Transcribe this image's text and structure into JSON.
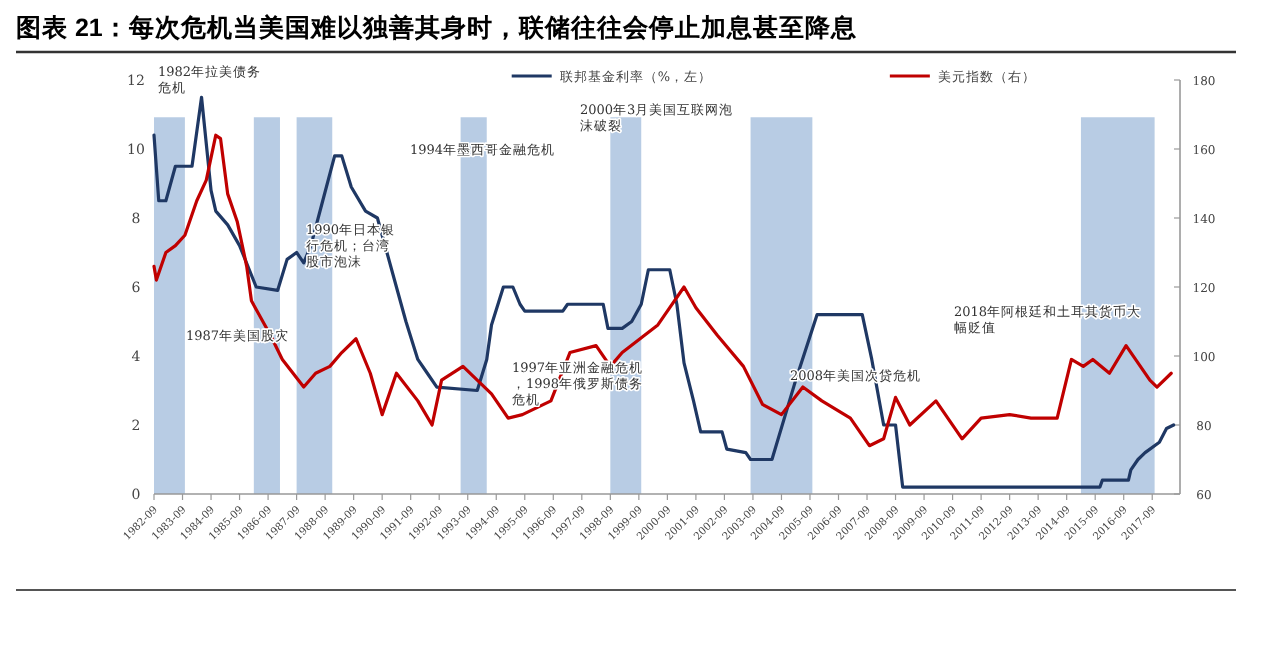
{
  "chart_data": {
    "type": "line",
    "title": "图表 21：每次危机当美国难以独善其身时，联储往往会停止加息甚至降息",
    "legend": "top",
    "xlim": [
      "1982-09",
      "2018-07"
    ],
    "xticks": [
      "1982-09",
      "1983-09",
      "1984-09",
      "1985-09",
      "1986-09",
      "1987-09",
      "1988-09",
      "1989-09",
      "1990-09",
      "1991-09",
      "1992-09",
      "1993-09",
      "1994-09",
      "1995-09",
      "1996-09",
      "1997-09",
      "1998-09",
      "1999-09",
      "2000-09",
      "2001-09",
      "2002-09",
      "2003-09",
      "2004-09",
      "2005-09",
      "2006-09",
      "2007-09",
      "2008-09",
      "2009-09",
      "2010-09",
      "2011-09",
      "2012-09",
      "2013-09",
      "2014-09",
      "2015-09",
      "2016-09",
      "2017-09"
    ],
    "ylim": [
      0,
      12
    ],
    "yticks": [
      0,
      2,
      4,
      6,
      8,
      10,
      12
    ],
    "y2lim": [
      60,
      180
    ],
    "y2ticks": [
      60,
      80,
      100,
      120,
      140,
      160,
      180
    ],
    "bands": [
      {
        "axis": "x",
        "from": "1982-09",
        "to": "1983-10",
        "color": "#b8cce4"
      },
      {
        "axis": "x",
        "from": "1986-03",
        "to": "1987-02",
        "color": "#b8cce4"
      },
      {
        "axis": "x",
        "from": "1987-09",
        "to": "1988-12",
        "color": "#b8cce4"
      },
      {
        "axis": "x",
        "from": "1993-06",
        "to": "1994-05",
        "color": "#b8cce4"
      },
      {
        "axis": "x",
        "from": "1998-09",
        "to": "1999-10",
        "color": "#b8cce4"
      },
      {
        "axis": "x",
        "from": "2003-08",
        "to": "2005-10",
        "color": "#b8cce4"
      },
      {
        "axis": "x",
        "from": "2015-03",
        "to": "2017-10",
        "color": "#b8cce4"
      }
    ],
    "series": [
      {
        "name": "联邦基金利率（%，左）",
        "type": "line",
        "axis": "y",
        "color": "#1f3864",
        "x": [
          "1982-09",
          "1982-11",
          "1983-02",
          "1983-06",
          "1984-01",
          "1984-05",
          "1984-09",
          "1984-11",
          "1985-04",
          "1985-09",
          "1986-04",
          "1987-01",
          "1987-05",
          "1987-09",
          "1987-12",
          "1988-03",
          "1988-08",
          "1989-01",
          "1989-04",
          "1989-08",
          "1990-02",
          "1990-07",
          "1990-11",
          "1991-03",
          "1991-07",
          "1991-12",
          "1992-04",
          "1992-08",
          "1994-01",
          "1994-05",
          "1994-07",
          "1994-12",
          "1995-04",
          "1995-07",
          "1995-09",
          "1997-01",
          "1997-03",
          "1998-06",
          "1998-08",
          "1999-02",
          "1999-06",
          "1999-10",
          "2000-01",
          "2000-10",
          "2001-01",
          "2001-04",
          "2001-08",
          "2001-11",
          "2002-08",
          "2002-10",
          "2003-06",
          "2003-08",
          "2004-05",
          "2005-03",
          "2005-12",
          "2007-07",
          "2007-11",
          "2008-04",
          "2008-09",
          "2008-12",
          "2015-11",
          "2015-12",
          "2016-11",
          "2016-12",
          "2017-03",
          "2017-06",
          "2017-12",
          "2018-03",
          "2018-06"
        ],
        "values": [
          10.4,
          8.5,
          8.5,
          9.5,
          9.5,
          11.5,
          8.8,
          8.2,
          7.8,
          7.2,
          6.0,
          5.9,
          6.8,
          7.0,
          6.7,
          7.2,
          8.5,
          9.8,
          9.8,
          8.9,
          8.2,
          8.0,
          7.0,
          6.0,
          5.0,
          3.9,
          3.5,
          3.1,
          3.0,
          3.9,
          4.9,
          6.0,
          6.0,
          5.5,
          5.3,
          5.3,
          5.5,
          5.5,
          4.8,
          4.8,
          5.0,
          5.5,
          6.5,
          6.5,
          5.5,
          3.8,
          2.7,
          1.8,
          1.8,
          1.3,
          1.2,
          1.0,
          1.0,
          3.3,
          5.2,
          5.2,
          3.9,
          2.0,
          2.0,
          0.2,
          0.2,
          0.4,
          0.4,
          0.7,
          1.0,
          1.2,
          1.5,
          1.9,
          2.0
        ]
      },
      {
        "name": "美元指数（右）",
        "type": "line",
        "axis": "y2",
        "color": "#c00000",
        "x": [
          "1982-09",
          "1982-10",
          "1983-02",
          "1983-06",
          "1983-10",
          "1984-03",
          "1984-07",
          "1984-11",
          "1985-01",
          "1985-04",
          "1985-08",
          "1985-12",
          "1986-02",
          "1986-10",
          "1987-03",
          "1987-12",
          "1988-05",
          "1988-11",
          "1989-04",
          "1989-10",
          "1990-04",
          "1990-09",
          "1991-03",
          "1991-12",
          "1992-06",
          "1992-10",
          "1993-07",
          "1994-01",
          "1994-07",
          "1995-02",
          "1995-08",
          "1996-08",
          "1997-04",
          "1998-03",
          "1998-09",
          "1999-02",
          "2000-05",
          "2000-10",
          "2001-04",
          "2001-09",
          "2002-06",
          "2003-05",
          "2004-01",
          "2004-09",
          "2005-06",
          "2006-02",
          "2007-02",
          "2007-10",
          "2008-04",
          "2008-09",
          "2009-03",
          "2010-02",
          "2011-01",
          "2011-09",
          "2012-09",
          "2013-06",
          "2014-05",
          "2014-11",
          "2015-04",
          "2015-08",
          "2016-03",
          "2016-10",
          "2017-08",
          "2017-11",
          "2018-05"
        ],
        "values": [
          126,
          122,
          130,
          132,
          135,
          145,
          151,
          164,
          163,
          147,
          139,
          126,
          116,
          106,
          99,
          91,
          95,
          97,
          101,
          105,
          95,
          83,
          95,
          87,
          80,
          93,
          97,
          93,
          89,
          82,
          83,
          87,
          101,
          103,
          97,
          101,
          109,
          114,
          120,
          114,
          106,
          97,
          86,
          83,
          91,
          87,
          82,
          74,
          76,
          88,
          80,
          87,
          76,
          82,
          83,
          82,
          82,
          99,
          97,
          99,
          95,
          103,
          93,
          91,
          95
        ]
      }
    ],
    "annotations": [
      "1982年拉美债务危机",
      "1987年美国股灾",
      "1990年日本银行危机；台湾股市泡沫",
      "1994年墨西哥金融危机",
      "1997年亚洲金融危机，1998年俄罗斯债务危机",
      "2000年3月美国互联网泡沫破裂",
      "2008年美国次贷危机",
      "2018年阿根廷和土耳其货币大幅贬值"
    ]
  }
}
